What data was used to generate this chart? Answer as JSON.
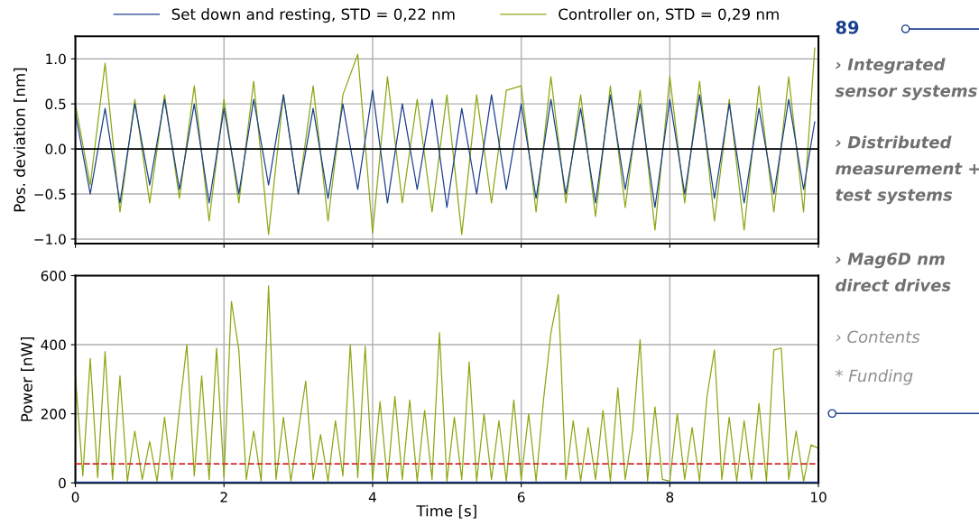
{
  "chart_data": [
    {
      "type": "line",
      "ylabel": "Pos. deviation [nm]",
      "xlim": [
        0,
        10
      ],
      "xticks": [
        0,
        2,
        4,
        6,
        8,
        10
      ],
      "ylim": [
        -1.05,
        1.25
      ],
      "yticks": [
        {
          "value": -1,
          "label": "−1.0"
        },
        {
          "value": -0.5,
          "label": "−0.5"
        },
        {
          "value": 0,
          "label": "0.0"
        },
        {
          "value": 0.5,
          "label": "0.5"
        },
        {
          "value": 1,
          "label": "1.0"
        }
      ],
      "tick_labels": "y",
      "grid": true,
      "legend": "top",
      "marker": "none",
      "line_style": "solid",
      "ref_lines": [
        {
          "axis": "y",
          "value": 0,
          "color": "#000000",
          "line_style": "solid"
        }
      ],
      "series": [
        {
          "name": "Controller on, STD = 0,29 nm",
          "color": "#8aa812",
          "x": [
            0,
            0.2,
            0.4,
            0.6,
            0.8,
            1,
            1.2,
            1.4,
            1.6,
            1.8,
            2,
            2.2,
            2.4,
            2.6,
            2.8,
            3,
            3.2,
            3.4,
            3.6,
            3.8,
            4,
            4.2,
            4.4,
            4.6,
            4.8,
            5,
            5.2,
            5.4,
            5.6,
            5.8,
            6,
            6.2,
            6.4,
            6.6,
            6.8,
            7,
            7.2,
            7.4,
            7.6,
            7.8,
            8,
            8.2,
            8.4,
            8.6,
            8.8,
            9,
            9.2,
            9.4,
            9.6,
            9.8,
            9.95
          ],
          "values": [
            0.5,
            -0.4,
            0.95,
            -0.7,
            0.55,
            -0.6,
            0.6,
            -0.55,
            0.7,
            -0.8,
            0.55,
            -0.6,
            0.75,
            -0.95,
            0.6,
            -0.5,
            0.7,
            -0.8,
            0.6,
            1.05,
            -0.93,
            0.8,
            -0.6,
            0.55,
            -0.7,
            0.6,
            -0.95,
            0.6,
            -0.6,
            0.65,
            0.7,
            -0.7,
            0.8,
            -0.6,
            0.6,
            -0.75,
            0.7,
            -0.65,
            0.65,
            -0.9,
            0.8,
            -0.6,
            0.75,
            -0.8,
            0.55,
            -0.9,
            0.7,
            -0.7,
            0.8,
            -0.7,
            1.12
          ]
        },
        {
          "name": "Set down and resting, STD = 0,22 nm",
          "color": "#1a3f8f",
          "x": [
            0,
            0.2,
            0.4,
            0.6,
            0.8,
            1,
            1.2,
            1.4,
            1.6,
            1.8,
            2,
            2.2,
            2.4,
            2.6,
            2.8,
            3,
            3.2,
            3.4,
            3.6,
            3.8,
            4,
            4.2,
            4.4,
            4.6,
            4.8,
            5,
            5.2,
            5.4,
            5.6,
            5.8,
            6,
            6.2,
            6.4,
            6.6,
            6.8,
            7,
            7.2,
            7.4,
            7.6,
            7.8,
            8,
            8.2,
            8.4,
            8.6,
            8.8,
            9,
            9.2,
            9.4,
            9.6,
            9.8,
            9.95
          ],
          "values": [
            0.4,
            -0.5,
            0.45,
            -0.6,
            0.5,
            -0.4,
            0.55,
            -0.45,
            0.5,
            -0.6,
            0.45,
            -0.5,
            0.55,
            -0.4,
            0.6,
            -0.5,
            0.45,
            -0.55,
            0.5,
            -0.45,
            0.65,
            -0.6,
            0.5,
            -0.45,
            0.55,
            -0.65,
            0.45,
            -0.5,
            0.6,
            -0.45,
            0.5,
            -0.55,
            0.55,
            -0.5,
            0.45,
            -0.6,
            0.6,
            -0.45,
            0.5,
            -0.65,
            0.55,
            -0.5,
            0.6,
            -0.55,
            0.5,
            -0.6,
            0.45,
            -0.5,
            0.55,
            -0.45,
            0.3
          ]
        }
      ]
    },
    {
      "type": "line",
      "xlabel": "Time [s]",
      "ylabel": "Power [nW]",
      "xlim": [
        0,
        10
      ],
      "xticks": [
        0,
        2,
        4,
        6,
        8,
        10
      ],
      "ylim": [
        0,
        600
      ],
      "yticks": [
        0,
        200,
        400,
        600
      ],
      "grid": true,
      "marker": "none",
      "line_style": "solid",
      "ref_lines": [
        {
          "axis": "y",
          "value": 55,
          "color": "#d62728",
          "line_style": "dashed"
        }
      ],
      "series": [
        {
          "color": "#8aa812",
          "x": [
            0,
            0.1,
            0.2,
            0.3,
            0.4,
            0.5,
            0.6,
            0.7,
            0.8,
            0.9,
            1,
            1.1,
            1.2,
            1.3,
            1.4,
            1.5,
            1.6,
            1.7,
            1.8,
            1.9,
            2,
            2.1,
            2.2,
            2.3,
            2.4,
            2.5,
            2.6,
            2.7,
            2.8,
            2.9,
            3,
            3.1,
            3.2,
            3.3,
            3.4,
            3.5,
            3.6,
            3.7,
            3.8,
            3.9,
            4,
            4.1,
            4.2,
            4.3,
            4.4,
            4.5,
            4.6,
            4.7,
            4.8,
            4.9,
            5,
            5.1,
            5.2,
            5.3,
            5.4,
            5.5,
            5.6,
            5.7,
            5.8,
            5.9,
            6,
            6.1,
            6.2,
            6.3,
            6.4,
            6.5,
            6.6,
            6.7,
            6.8,
            6.9,
            7,
            7.1,
            7.2,
            7.3,
            7.4,
            7.5,
            7.6,
            7.7,
            7.8,
            7.9,
            8,
            8.1,
            8.2,
            8.3,
            8.4,
            8.5,
            8.6,
            8.7,
            8.8,
            8.9,
            9,
            9.1,
            9.2,
            9.3,
            9.4,
            9.5,
            9.6,
            9.7,
            9.8,
            9.9,
            10
          ],
          "values": [
            310,
            20,
            360,
            15,
            380,
            10,
            310,
            5,
            150,
            10,
            120,
            5,
            190,
            10,
            210,
            400,
            20,
            310,
            10,
            390,
            15,
            525,
            385,
            10,
            150,
            5,
            570,
            10,
            190,
            5,
            150,
            295,
            10,
            140,
            5,
            180,
            20,
            400,
            15,
            395,
            10,
            235,
            5,
            250,
            10,
            240,
            5,
            210,
            10,
            435,
            5,
            190,
            10,
            350,
            5,
            200,
            10,
            180,
            5,
            240,
            10,
            200,
            5,
            240,
            435,
            545,
            10,
            180,
            5,
            160,
            10,
            210,
            5,
            275,
            10,
            150,
            415,
            5,
            220,
            10,
            5,
            200,
            10,
            160,
            5,
            250,
            385,
            10,
            190,
            5,
            180,
            10,
            230,
            5,
            385,
            390,
            10,
            150,
            5,
            110,
            100
          ]
        },
        {
          "color": "#1a3f8f",
          "x": [
            0,
            10
          ],
          "values": [
            0,
            0
          ]
        }
      ]
    },
    {
      "type": "other",
      "annotations": [
        "89",
        "› Integrated\nsensor systems",
        "› Distributed\nmeasurement +\ntest systems",
        "› Mag6D nm\ndirect drives",
        "› Contents",
        "* Funding"
      ]
    }
  ]
}
